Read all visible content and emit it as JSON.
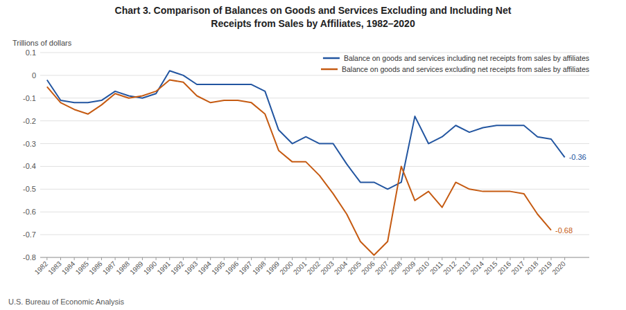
{
  "chart_data": {
    "type": "line",
    "title": "Chart 3. Comparison of Balances on Goods and Services Excluding and Including Net\nReceipts from Sales by Affiliates, 1982–2020",
    "ylabel": "Trillions of dollars",
    "footnote": "U.S. Bureau of Economic Analysis",
    "x": [
      1982,
      1983,
      1984,
      1985,
      1986,
      1987,
      1988,
      1989,
      1990,
      1991,
      1992,
      1993,
      1994,
      1995,
      1996,
      1997,
      1998,
      1999,
      2000,
      2001,
      2002,
      2003,
      2004,
      2005,
      2006,
      2007,
      2008,
      2009,
      2010,
      2011,
      2012,
      2013,
      2014,
      2015,
      2016,
      2017,
      2018,
      2019,
      2020
    ],
    "series": [
      {
        "name": "Balance on goods and services including net receipts from sales by affiliates",
        "color": "#2255a0",
        "values": [
          -0.02,
          -0.11,
          -0.12,
          -0.12,
          -0.11,
          -0.07,
          -0.09,
          -0.1,
          -0.08,
          0.02,
          0.0,
          -0.04,
          -0.04,
          -0.04,
          -0.04,
          -0.04,
          -0.07,
          -0.24,
          -0.3,
          -0.27,
          -0.3,
          -0.3,
          -0.39,
          -0.47,
          -0.47,
          -0.5,
          -0.47,
          -0.18,
          -0.3,
          -0.27,
          -0.22,
          -0.25,
          -0.23,
          -0.22,
          -0.22,
          -0.22,
          -0.27,
          -0.28,
          -0.36
        ]
      },
      {
        "name": "Balance on goods and services excluding net receipts from sales by affiliates",
        "color": "#c55a11",
        "values": [
          -0.05,
          -0.12,
          -0.15,
          -0.17,
          -0.13,
          -0.08,
          -0.1,
          -0.09,
          -0.07,
          -0.02,
          -0.03,
          -0.09,
          -0.12,
          -0.11,
          -0.11,
          -0.12,
          -0.17,
          -0.33,
          -0.38,
          -0.38,
          -0.44,
          -0.52,
          -0.61,
          -0.73,
          -0.79,
          -0.73,
          -0.4,
          -0.55,
          -0.51,
          -0.58,
          -0.47,
          -0.5,
          -0.51,
          -0.51,
          -0.51,
          -0.52,
          -0.61,
          -0.68,
          null
        ]
      }
    ],
    "annotations": [
      {
        "text": "-0.36",
        "x": 2020,
        "y": -0.36
      },
      {
        "text": "-0.68",
        "x": 2019,
        "y": -0.68
      }
    ],
    "xlim": [
      1981.5,
      2021.8
    ],
    "xticks": [
      1982,
      1983,
      1984,
      1985,
      1986,
      1987,
      1988,
      1989,
      1990,
      1991,
      1992,
      1993,
      1994,
      1995,
      1996,
      1997,
      1998,
      1999,
      2000,
      2001,
      2002,
      2003,
      2004,
      2005,
      2006,
      2007,
      2008,
      2009,
      2010,
      2011,
      2012,
      2013,
      2014,
      2015,
      2016,
      2017,
      2018,
      2019,
      2020
    ],
    "ylim": [
      -0.8,
      0.1
    ],
    "yticks": [
      -0.8,
      -0.7,
      -0.6,
      -0.5,
      -0.4,
      -0.3,
      -0.2,
      -0.1,
      0,
      0.1
    ],
    "grid": true,
    "legend": "upper right"
  }
}
